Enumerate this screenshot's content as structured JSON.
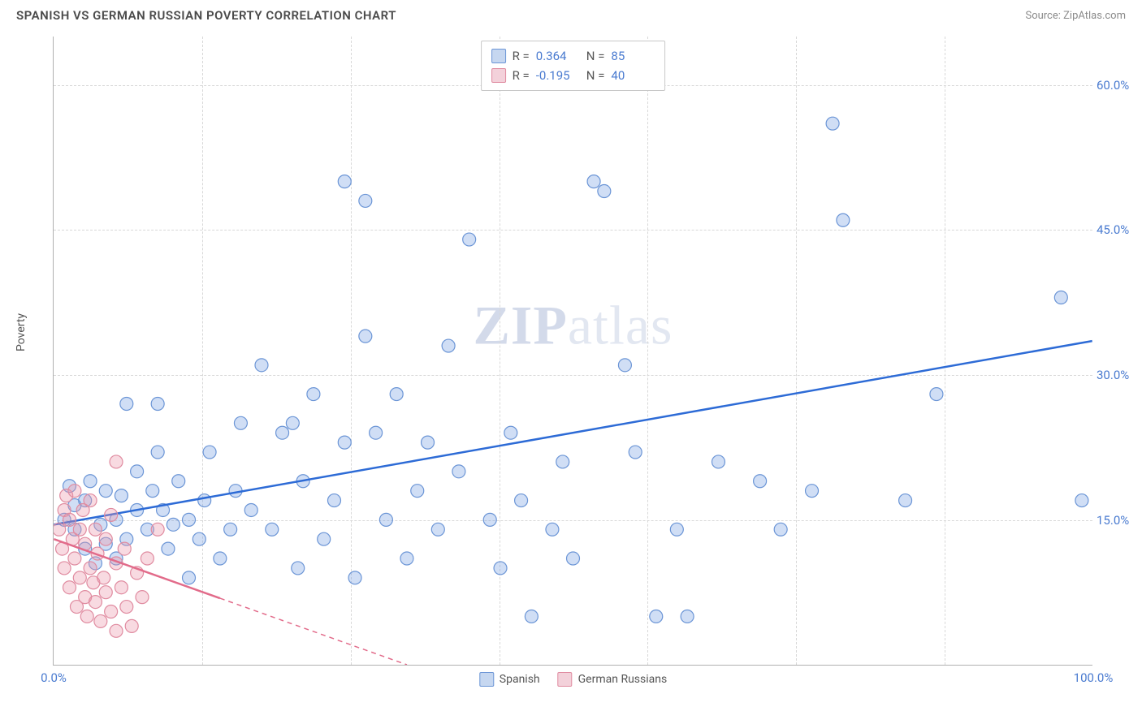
{
  "title": "SPANISH VS GERMAN RUSSIAN POVERTY CORRELATION CHART",
  "source": "Source: ZipAtlas.com",
  "ylabel": "Poverty",
  "watermark_zip": "ZIP",
  "watermark_atlas": "atlas",
  "chart": {
    "type": "scatter",
    "xlim": [
      0,
      100
    ],
    "ylim": [
      0,
      65
    ],
    "xtick_labels": [
      "0.0%",
      "100.0%"
    ],
    "xtick_positions": [
      0,
      100
    ],
    "ytick_labels": [
      "15.0%",
      "30.0%",
      "45.0%",
      "60.0%"
    ],
    "ytick_positions": [
      15,
      30,
      45,
      60
    ],
    "vgrid_positions": [
      14.3,
      28.6,
      42.9,
      57.1,
      71.4,
      85.7
    ],
    "background_color": "#ffffff",
    "grid_color": "#d8d8d8",
    "axis_color": "#b0b0b0",
    "marker_radius": 8,
    "marker_stroke_width": 1.2,
    "trend_line_width": 2.5,
    "series": [
      {
        "name": "Spanish",
        "color_fill": "rgba(120,160,225,0.35)",
        "color_stroke": "#6b95d6",
        "swatch_fill": "#c6d7f0",
        "swatch_stroke": "#6b95d6",
        "R": "0.364",
        "N": "85",
        "trend": {
          "x1": 0,
          "y1": 14.5,
          "x2": 100,
          "y2": 33.5,
          "color": "#2d6bd6",
          "dash_extend": false
        },
        "points": [
          [
            1,
            15
          ],
          [
            1.5,
            18.5
          ],
          [
            2,
            14
          ],
          [
            2,
            16.5
          ],
          [
            3,
            12
          ],
          [
            3,
            17
          ],
          [
            3.5,
            19
          ],
          [
            4,
            10.5
          ],
          [
            4.5,
            14.5
          ],
          [
            5,
            12.5
          ],
          [
            5,
            18
          ],
          [
            6,
            11
          ],
          [
            6,
            15
          ],
          [
            6.5,
            17.5
          ],
          [
            7,
            27
          ],
          [
            7,
            13
          ],
          [
            8,
            16
          ],
          [
            8,
            20
          ],
          [
            9,
            14
          ],
          [
            9.5,
            18
          ],
          [
            10,
            22
          ],
          [
            10,
            27
          ],
          [
            10.5,
            16
          ],
          [
            11,
            12
          ],
          [
            11.5,
            14.5
          ],
          [
            12,
            19
          ],
          [
            13,
            9
          ],
          [
            13,
            15
          ],
          [
            14,
            13
          ],
          [
            14.5,
            17
          ],
          [
            15,
            22
          ],
          [
            16,
            11
          ],
          [
            17,
            14
          ],
          [
            17.5,
            18
          ],
          [
            18,
            25
          ],
          [
            19,
            16
          ],
          [
            20,
            31
          ],
          [
            21,
            14
          ],
          [
            22,
            24
          ],
          [
            23,
            25
          ],
          [
            23.5,
            10
          ],
          [
            24,
            19
          ],
          [
            25,
            28
          ],
          [
            26,
            13
          ],
          [
            27,
            17
          ],
          [
            28,
            23
          ],
          [
            28,
            50
          ],
          [
            29,
            9
          ],
          [
            30,
            48
          ],
          [
            30,
            34
          ],
          [
            31,
            24
          ],
          [
            32,
            15
          ],
          [
            33,
            28
          ],
          [
            34,
            11
          ],
          [
            35,
            18
          ],
          [
            36,
            23
          ],
          [
            37,
            14
          ],
          [
            38,
            33
          ],
          [
            39,
            20
          ],
          [
            40,
            44
          ],
          [
            42,
            15
          ],
          [
            43,
            10
          ],
          [
            44,
            24
          ],
          [
            45,
            17
          ],
          [
            46,
            5
          ],
          [
            48,
            14
          ],
          [
            49,
            21
          ],
          [
            50,
            11
          ],
          [
            52,
            50
          ],
          [
            53,
            49
          ],
          [
            55,
            31
          ],
          [
            56,
            22
          ],
          [
            58,
            5
          ],
          [
            60,
            14
          ],
          [
            61,
            5
          ],
          [
            64,
            21
          ],
          [
            68,
            19
          ],
          [
            70,
            14
          ],
          [
            73,
            18
          ],
          [
            75,
            56
          ],
          [
            76,
            46
          ],
          [
            82,
            17
          ],
          [
            85,
            28
          ],
          [
            97,
            38
          ],
          [
            99,
            17
          ]
        ]
      },
      {
        "name": "German Russians",
        "color_fill": "rgba(235,150,170,0.35)",
        "color_stroke": "#e08ba0",
        "swatch_fill": "#f3d1da",
        "swatch_stroke": "#e08ba0",
        "R": "-0.195",
        "N": "40",
        "trend": {
          "x1": 0,
          "y1": 13,
          "x2": 34,
          "y2": 0,
          "color": "#e26b8a",
          "dash_extend": true,
          "solid_end_x": 16
        },
        "points": [
          [
            0.5,
            14
          ],
          [
            0.8,
            12
          ],
          [
            1,
            16
          ],
          [
            1,
            10
          ],
          [
            1.2,
            17.5
          ],
          [
            1.5,
            8
          ],
          [
            1.5,
            15
          ],
          [
            1.8,
            13
          ],
          [
            2,
            11
          ],
          [
            2,
            18
          ],
          [
            2.2,
            6
          ],
          [
            2.5,
            14
          ],
          [
            2.5,
            9
          ],
          [
            2.8,
            16
          ],
          [
            3,
            7
          ],
          [
            3,
            12.5
          ],
          [
            3.2,
            5
          ],
          [
            3.5,
            10
          ],
          [
            3.5,
            17
          ],
          [
            3.8,
            8.5
          ],
          [
            4,
            14
          ],
          [
            4,
            6.5
          ],
          [
            4.2,
            11.5
          ],
          [
            4.5,
            4.5
          ],
          [
            4.8,
            9
          ],
          [
            5,
            13
          ],
          [
            5,
            7.5
          ],
          [
            5.5,
            5.5
          ],
          [
            5.5,
            15.5
          ],
          [
            6,
            10.5
          ],
          [
            6,
            3.5
          ],
          [
            6.5,
            8
          ],
          [
            6.8,
            12
          ],
          [
            7,
            6
          ],
          [
            7.5,
            4
          ],
          [
            8,
            9.5
          ],
          [
            8.5,
            7
          ],
          [
            9,
            11
          ],
          [
            10,
            14
          ],
          [
            6,
            21
          ]
        ]
      }
    ]
  },
  "legend": {
    "stat_R_label": "R =",
    "stat_N_label": "N ="
  },
  "colors": {
    "tick_text": "#4a7bd0",
    "title_text": "#4a4a4a",
    "source_text": "#8a8a8a",
    "stat_value": "#4a7bd0"
  }
}
